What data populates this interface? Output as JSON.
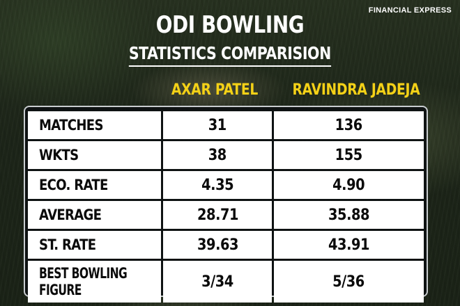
{
  "brand": "FINANCIAL EXPRESS",
  "title": "ODI BOWLING",
  "subtitle": "STATISTICS COMPARISION",
  "players": [
    "AXAR PATEL",
    "RAVINDRA JADEJA"
  ],
  "colors": {
    "player_header": "#f4d117",
    "cell_bg": "#ffffff",
    "table_bg": "#0c1012"
  },
  "rows": [
    {
      "label": "MATCHES",
      "axar": "31",
      "jadeja": "136"
    },
    {
      "label": "WKTS",
      "axar": "38",
      "jadeja": "155"
    },
    {
      "label": "ECO. RATE",
      "axar": "4.35",
      "jadeja": "4.90"
    },
    {
      "label": "AVERAGE",
      "axar": "28.71",
      "jadeja": "35.88"
    },
    {
      "label": "ST. RATE",
      "axar": "39.63",
      "jadeja": "43.91"
    },
    {
      "label_line1": "BEST BOWLING",
      "label_line2": "FIGURE",
      "axar": "3/34",
      "jadeja": "5/36"
    }
  ]
}
